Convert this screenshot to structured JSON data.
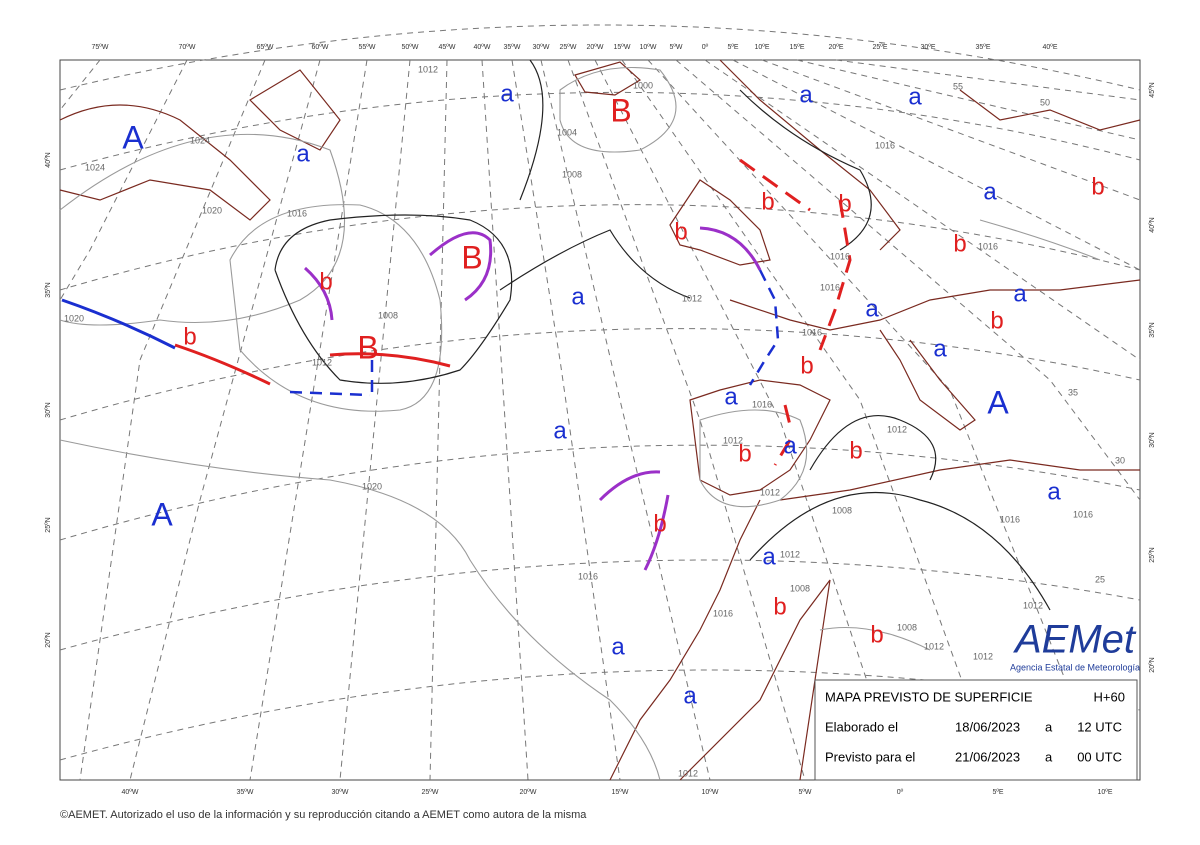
{
  "map": {
    "top_labels": [
      "75ºW",
      "70ºW",
      "65ºW",
      "60ºW",
      "55ºW",
      "50ºW",
      "45ºW",
      "40ºW",
      "35ºW",
      "30ºW",
      "25ºW",
      "20ºW",
      "15ºW",
      "10ºW",
      "5ºW",
      "0º",
      "5ºE",
      "10ºE",
      "15ºE",
      "20ºE",
      "25ºE",
      "30ºE",
      "35ºE",
      "40ºE"
    ],
    "bottom_labels": [
      "40ºW",
      "35ºW",
      "30ºW",
      "25ºW",
      "20ºW",
      "15ºW",
      "10ºW",
      "5ºW",
      "0º",
      "5ºE",
      "10ºE"
    ],
    "left_labels": [
      "40ºN",
      "35ºN",
      "30ºN",
      "25ºN",
      "20ºN"
    ],
    "right_labels": [
      "45ºN",
      "40ºN",
      "35ºN",
      "30ºN",
      "25ºN",
      "20ºN"
    ],
    "systems": [
      "A",
      "a",
      "a",
      "B",
      "b",
      "B",
      "B",
      "b",
      "a",
      "a",
      "A",
      "b",
      "a",
      "a",
      "a",
      "a",
      "b",
      "b",
      "b",
      "a",
      "b",
      "b",
      "a",
      "b",
      "a",
      "a",
      "A",
      "b",
      "a",
      "b",
      "a",
      "b",
      "a",
      "a",
      "b",
      "b"
    ],
    "isobar_labels": [
      "1012",
      "1000",
      "1004",
      "1008",
      "1024",
      "1024",
      "1020",
      "1016",
      "1008",
      "1012",
      "1012",
      "1020",
      "1016",
      "1016",
      "1016",
      "1016",
      "1016",
      "1012",
      "1016",
      "1012",
      "1012",
      "1008",
      "1016",
      "1016",
      "1020",
      "1016",
      "1012",
      "1008",
      "1016",
      "1012",
      "1008",
      "1012",
      "1012",
      "1012",
      "50",
      "55",
      "35",
      "30",
      "25"
    ]
  },
  "info_box": {
    "title": "MAPA PREVISTO DE SUPERFICIE",
    "lead": "H+60",
    "row1": [
      "Elaborado el",
      "18/06/2023",
      "a",
      "12 UTC"
    ],
    "row2": [
      "Previsto para el",
      "21/06/2023",
      "a",
      "00 UTC"
    ]
  },
  "logo": {
    "name": "AEMet",
    "subtitle": "Agencia Estatal de Meteorología"
  },
  "footer": "©AEMET. Autorizado el uso de la información y su reproducción citando a AEMET como autora de la misma"
}
